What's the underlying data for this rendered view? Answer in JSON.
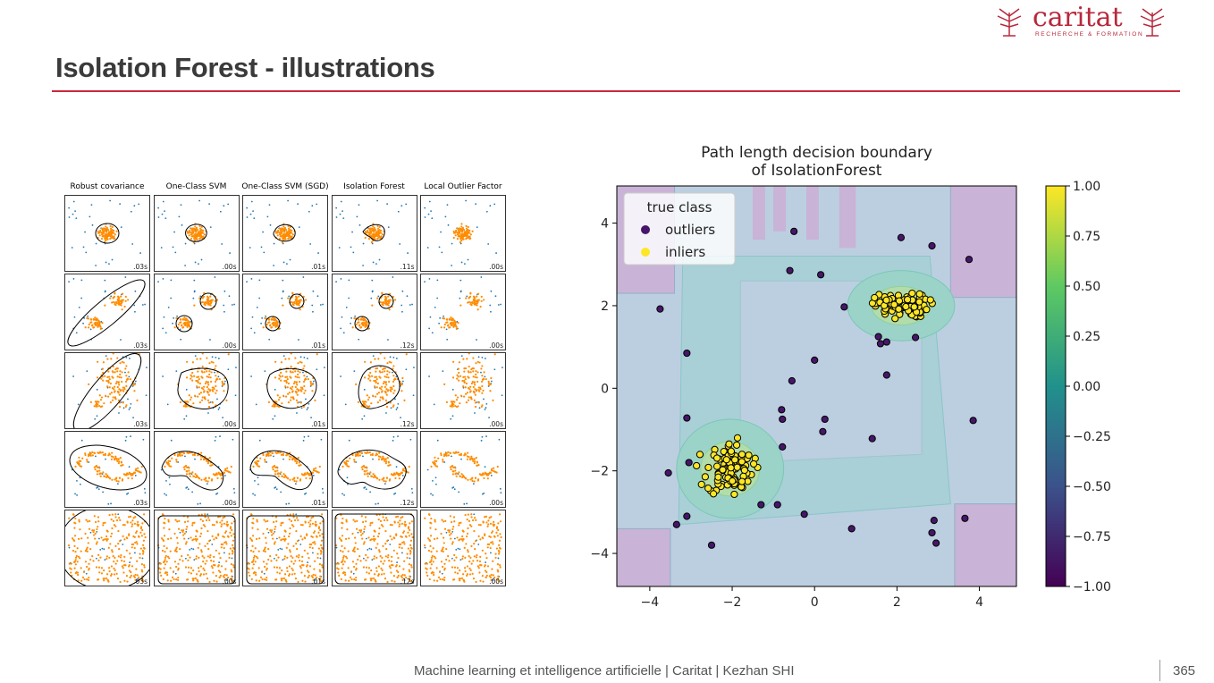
{
  "slide": {
    "title": "Isolation Forest - illustrations",
    "footer": "Machine learning et intelligence artificielle | Caritat | Kezhan SHI",
    "page_number": "365",
    "logo_text": "caritat",
    "logo_subtitle": "RECHERCHE & FORMATION",
    "accent_color": "#c8283c"
  },
  "comparison": {
    "columns": [
      "Robust covariance",
      "One-Class SVM",
      "One-Class SVM (SGD)",
      "Isolation Forest",
      "Local Outlier Factor"
    ],
    "times": [
      [
        ".03s",
        ".00s",
        ".01s",
        ".11s",
        ".00s"
      ],
      [
        ".03s",
        ".00s",
        ".01s",
        ".12s",
        ".00s"
      ],
      [
        ".03s",
        ".00s",
        ".01s",
        ".12s",
        ".00s"
      ],
      [
        ".03s",
        ".00s",
        ".01s",
        ".12s",
        ".00s"
      ],
      [
        ".03s",
        ".00s",
        ".01s",
        ".12s",
        ".00s"
      ]
    ],
    "inlier_color": "#ff8c00",
    "outlier_color": "#1f77b4"
  },
  "chart_data": {
    "type": "scatter",
    "title": "Path length decision boundary\nof IsolationForest",
    "title_lines": [
      "Path length decision boundary",
      "of IsolationForest"
    ],
    "xlabel": "",
    "ylabel": "",
    "xlim": [
      -4.8,
      4.9
    ],
    "ylim": [
      -4.8,
      4.9
    ],
    "xticks": [
      -4,
      -2,
      0,
      2,
      4
    ],
    "yticks": [
      -4,
      -2,
      0,
      2,
      4
    ],
    "tick_labels": [
      "−4",
      "−2",
      "0",
      "2",
      "4"
    ],
    "legend": {
      "title": "true class",
      "entries": [
        "outliers",
        "inliers"
      ],
      "position": "top-left"
    },
    "colorbar": {
      "ticks": [
        1.0,
        0.75,
        0.5,
        0.25,
        0.0,
        -0.25,
        -0.5,
        -0.75,
        -1.0
      ],
      "tick_labels": [
        "1.00",
        "0.75",
        "0.50",
        "0.25",
        "0.00",
        "−0.25",
        "−0.50",
        "−0.75",
        "−1.00"
      ],
      "range": [
        -1,
        1
      ]
    },
    "series": [
      {
        "name": "outliers",
        "color": "#46166a",
        "points": [
          [
            -3.75,
            1.92
          ],
          [
            -3.1,
            0.85
          ],
          [
            -3.1,
            -0.72
          ],
          [
            -3.55,
            -2.05
          ],
          [
            -3.05,
            -1.8
          ],
          [
            -3.1,
            -3.1
          ],
          [
            -3.35,
            -3.3
          ],
          [
            -2.5,
            -3.8
          ],
          [
            -0.5,
            3.8
          ],
          [
            -0.6,
            2.85
          ],
          [
            0.15,
            2.75
          ],
          [
            0.0,
            0.68
          ],
          [
            -0.55,
            0.18
          ],
          [
            -0.8,
            -0.52
          ],
          [
            -0.78,
            -0.75
          ],
          [
            -0.78,
            -1.42
          ],
          [
            0.25,
            -0.75
          ],
          [
            0.2,
            -1.05
          ],
          [
            -1.3,
            -2.82
          ],
          [
            -0.9,
            -2.82
          ],
          [
            -0.25,
            -3.05
          ],
          [
            0.9,
            -3.4
          ],
          [
            1.4,
            -1.22
          ],
          [
            0.72,
            1.97
          ],
          [
            1.55,
            1.25
          ],
          [
            1.6,
            1.08
          ],
          [
            1.75,
            1.12
          ],
          [
            1.75,
            0.32
          ],
          [
            2.1,
            3.65
          ],
          [
            2.85,
            3.45
          ],
          [
            3.75,
            3.12
          ],
          [
            2.45,
            1.23
          ],
          [
            2.9,
            -3.2
          ],
          [
            2.85,
            -3.5
          ],
          [
            2.95,
            -3.75
          ],
          [
            3.65,
            -3.15
          ],
          [
            3.85,
            -0.78
          ]
        ]
      },
      {
        "name": "inliers",
        "color": "#fde725",
        "clusters": [
          {
            "center": [
              -2.05,
              -1.95
            ],
            "spread": [
              0.28,
              0.32
            ],
            "count": 100
          },
          {
            "center": [
              2.1,
              2.0
            ],
            "spread": [
              0.32,
              0.14
            ],
            "count": 100
          }
        ]
      }
    ]
  }
}
